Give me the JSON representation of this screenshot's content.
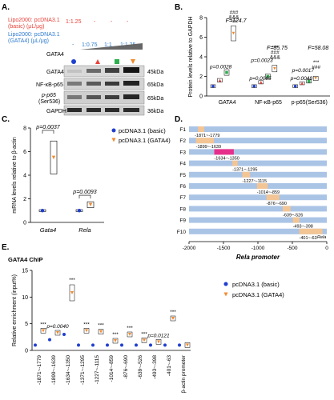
{
  "panel_labels": {
    "a": "A.",
    "b": "B.",
    "c": "C.",
    "d": "D.",
    "e": "E."
  },
  "panel_a": {
    "row1_label": "Lipo2000: pcDNA3.1 (basic) (μL/μg)",
    "row1_values": [
      "1:1.25",
      "-",
      "-",
      "-"
    ],
    "row2_label": "Lipo2000: pcDNA3.1 (GATA4) (μL/μg)",
    "row2_values": [
      "-",
      "1:0.75",
      "1:1",
      "1:1.25"
    ],
    "gata4_label": "GATA4",
    "blots": [
      {
        "name": "GATA4",
        "kda": "45kDa"
      },
      {
        "name": "NF-κB-p65",
        "kda": "65kDa"
      },
      {
        "name": "p-p65 (Ser536)",
        "name_line1": "p-p65",
        "name_line2": "(Ser536)",
        "kda": "65kDa"
      },
      {
        "name": "GAPDH",
        "kda": "36kDa"
      }
    ]
  },
  "colors": {
    "basic": "#1f3fcf",
    "red": "#e8423a",
    "green": "#2fae4e",
    "orange": "#f28a2e",
    "pink": "#e62f8a",
    "blue_light": "#aac4e6"
  },
  "chart_data": [
    {
      "id": "B",
      "type": "box",
      "ylabel": "Protein levels relative to GAPDH",
      "ylim": [
        0,
        8
      ],
      "yticks": [
        0,
        2,
        4,
        6,
        8
      ],
      "categories": [
        "GATA4",
        "NF-κB-p65",
        "p-p65(Ser536)"
      ],
      "groups": [
        "basic",
        "GATA4 1:0.75",
        "GATA4 1:1",
        "GATA4 1:1.25"
      ],
      "series": [
        {
          "category": "GATA4",
          "values": [
            1.0,
            1.6,
            2.4,
            6.4
          ],
          "F": "F=124.7",
          "p": "p=0.0028",
          "marks": [
            "***",
            "&&&",
            "###"
          ]
        },
        {
          "category": "NF-κB-p65",
          "values": [
            1.0,
            1.4,
            2.0,
            2.8
          ],
          "F": "F=85.75",
          "p": "p=0.0023",
          "p2": "p=0.0085",
          "marks": [
            "&&&",
            "###",
            "***"
          ]
        },
        {
          "category": "p-p65(Ser536)",
          "values": [
            1.0,
            1.3,
            1.5,
            1.8
          ],
          "F": "F=58.08",
          "p": "p=0.0017",
          "p2": "p=0.0048",
          "marks": [
            "###",
            "***"
          ]
        }
      ]
    },
    {
      "id": "C",
      "type": "box",
      "ylabel": "mRNA levels relative to β-actin",
      "ylim": [
        0,
        8
      ],
      "yticks": [
        0,
        2,
        4,
        6,
        8
      ],
      "categories": [
        "Gata4",
        "Rela"
      ],
      "series": [
        {
          "name": "pcDNA3.1 (basic)",
          "values": [
            1.0,
            1.0
          ]
        },
        {
          "name": "pcDNA3.1 (GATA4)",
          "values": [
            5.5,
            1.5
          ]
        }
      ],
      "annotations": [
        "p=0.0037",
        "p=0.0093"
      ]
    },
    {
      "id": "D",
      "type": "bar-map",
      "xlabel": "Rela promoter",
      "xlim": [
        -2000,
        0
      ],
      "xticks": [
        -2000,
        -1500,
        -1000,
        -500,
        0
      ],
      "rows": [
        {
          "name": "F1",
          "start": -1871,
          "end": -1779,
          "label": "-1871~-1779"
        },
        {
          "name": "F2",
          "start": -1899,
          "end": -1639,
          "label": "-1899~-1639"
        },
        {
          "name": "F3",
          "start": -1634,
          "end": -1350,
          "label": "-1634~-1350"
        },
        {
          "name": "F4",
          "start": -1371,
          "end": -1295,
          "label": "-1371~-1295"
        },
        {
          "name": "F5",
          "start": -1227,
          "end": -1115,
          "label": "-1227~-1115"
        },
        {
          "name": "F6",
          "start": -1014,
          "end": -859,
          "label": "-1014~-859"
        },
        {
          "name": "F7",
          "start": -876,
          "end": -690,
          "label": "-876~-690"
        },
        {
          "name": "F8",
          "start": -639,
          "end": -526,
          "label": "-639~-526"
        },
        {
          "name": "F9",
          "start": -493,
          "end": -398,
          "label": "-493~-398"
        },
        {
          "name": "F10",
          "start": -401,
          "end": -63,
          "label": "-401~-63"
        }
      ],
      "end_label": "Rela"
    },
    {
      "id": "E",
      "type": "dot",
      "title": "GATA4 ChIP",
      "ylabel": "Relative enrichment (input%)",
      "ylim": [
        0,
        15
      ],
      "yticks": [
        0,
        5,
        10,
        15
      ],
      "categories": [
        "-1871~-1779",
        "-1899~-1639",
        "-1634~-1350",
        "-1371~-1295",
        "-1227~-1115",
        "-1014~-859",
        "-876~-690",
        "-639~-526",
        "-493~-398",
        "-401~-63",
        "β-actin promoter"
      ],
      "series": [
        {
          "name": "pcDNA3.1 (basic)",
          "values": [
            1.0,
            2.0,
            3.0,
            1.0,
            1.0,
            1.0,
            1.0,
            1.0,
            1.0,
            1.0,
            1.0
          ]
        },
        {
          "name": "pcDNA3.1 (GATA4)",
          "values": [
            3.7,
            3.3,
            10.8,
            3.7,
            3.5,
            1.8,
            3.0,
            1.9,
            1.6,
            6.0,
            1.0
          ]
        }
      ],
      "annotations": [
        {
          "category": "-1871~-1779",
          "text": "***"
        },
        {
          "category": "-1899~-1639",
          "text": "p=0.0040"
        },
        {
          "category": "-1634~-1350",
          "text": "***"
        },
        {
          "category": "-1371~-1295",
          "text": "***"
        },
        {
          "category": "-1227~-1115",
          "text": "***"
        },
        {
          "category": "-1014~-859",
          "text": "***"
        },
        {
          "category": "-876~-690",
          "text": "***"
        },
        {
          "category": "-639~-526",
          "text": "***"
        },
        {
          "category": "-493~-398",
          "text": "p=0.0121"
        },
        {
          "category": "-401~-63",
          "text": "***"
        }
      ]
    }
  ],
  "legends": {
    "basic": "pcDNA3.1 (basic)",
    "gata4": "pcDNA3.1 (GATA4)"
  }
}
